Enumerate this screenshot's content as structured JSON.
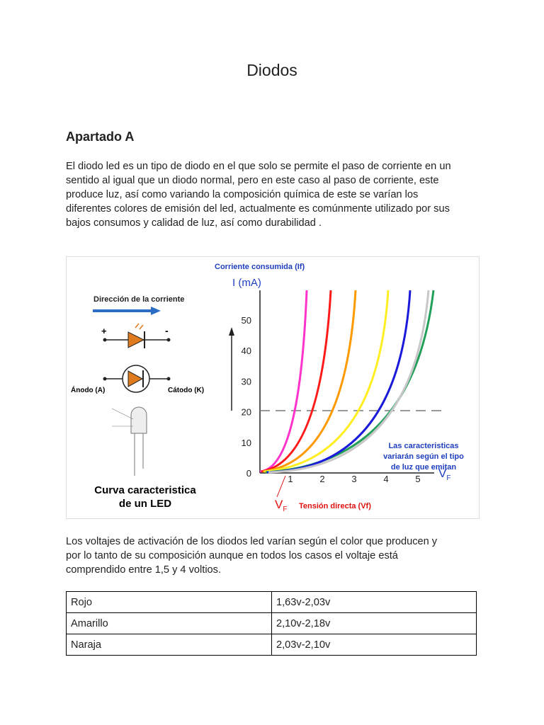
{
  "header": {
    "title": "Diodos"
  },
  "section": {
    "heading": "Apartado A",
    "paragraph": [
      "El diodo led es un tipo de diodo en el que solo se permite el paso de corriente en un",
      "sentido al igual que un diodo normal, pero en este caso al paso de corriente, este",
      "produce luz, así como variando la composición química de este se varían los",
      "diferentes colores de emisión del led, actualmente es comúnmente utilizado por sus",
      "bajos consumos y calidad de luz, así como durabilidad ."
    ]
  },
  "figure": {
    "left": {
      "direction": "Dirección de la corriente",
      "plus": "+",
      "minus": "-",
      "anode": "Ánodo (A)",
      "cathode": "Cátodo (K)",
      "caption": [
        "Curva caracteristica",
        "de un LED"
      ]
    },
    "chart": {
      "title": "Corriente consumida (If)",
      "y_label": "I (mA)",
      "yticks": [
        0,
        10,
        20,
        30,
        40,
        50
      ],
      "xticks": [
        1,
        2,
        3,
        4,
        5
      ],
      "note": [
        "Las caracteristicas",
        "variarán según el tipo",
        "de luz que emitan"
      ],
      "vf_axis": {
        "main": "V",
        "sub": "F"
      },
      "vf_point": {
        "main": "V",
        "sub": "F"
      },
      "x_label": "Tensión directa (Vf)"
    }
  },
  "paragraph2": [
    "Los voltajes de activación de los diodos led varían según el color que producen y",
    "por lo tanto de su composición aunque en todos los casos el voltaje está",
    "comprendido entre 1,5 y 4 voltios."
  ],
  "table": {
    "rows": [
      [
        "Rojo",
        "1,63v-2,03v"
      ],
      [
        "Amarillo",
        "2,10v-2,18v"
      ],
      [
        "Naraja",
        "2,03v-2,10v"
      ]
    ]
  }
}
